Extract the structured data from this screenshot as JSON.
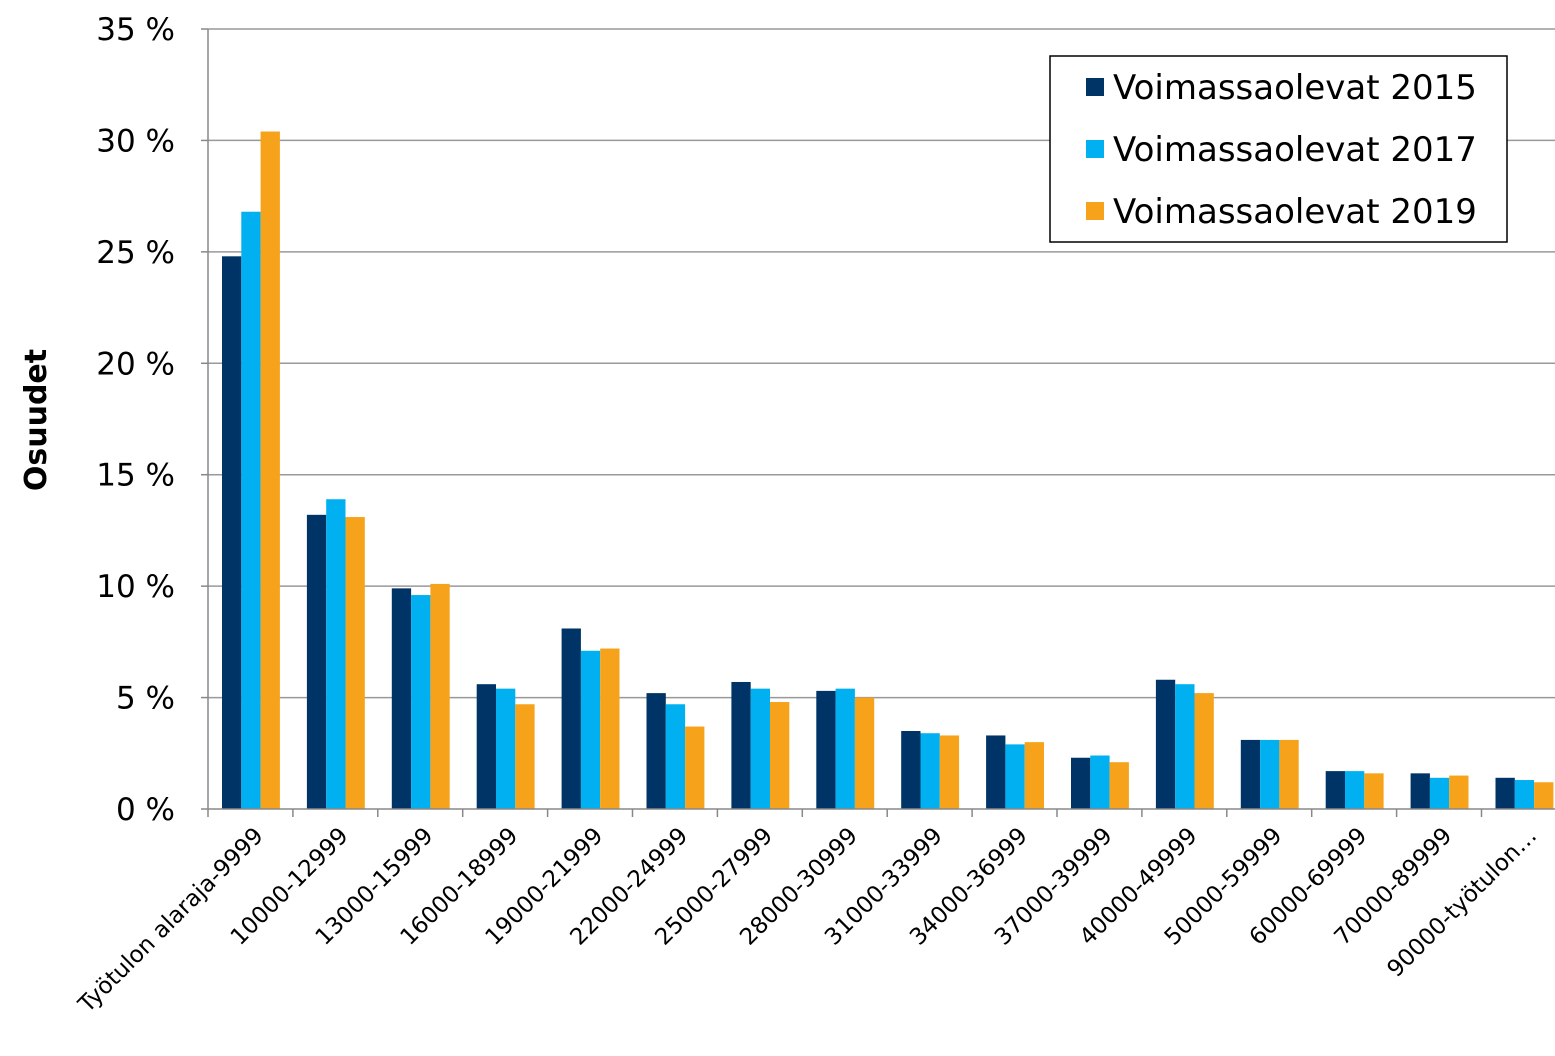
{
  "chart_data": {
    "type": "bar",
    "ylabel": "Osuudet",
    "categories": [
      "Työtulon alaraja-9999",
      "10000-12999",
      "13000-15999",
      "16000-18999",
      "19000-21999",
      "22000-24999",
      "25000-27999",
      "28000-30999",
      "31000-33999",
      "34000-36999",
      "37000-39999",
      "40000-49999",
      "50000-59999",
      "60000-69999",
      "70000-89999",
      "90000-työtulon…"
    ],
    "series": [
      {
        "name": "Voimassaolevat 2015",
        "color": "#003366",
        "values": [
          24.8,
          13.2,
          9.9,
          5.6,
          8.1,
          5.2,
          5.7,
          5.3,
          3.5,
          3.3,
          2.3,
          5.8,
          3.1,
          1.7,
          1.6,
          1.4
        ]
      },
      {
        "name": "Voimassaolevat 2017",
        "color": "#00b0f0",
        "values": [
          26.8,
          13.9,
          9.6,
          5.4,
          7.1,
          4.7,
          5.4,
          5.4,
          3.4,
          2.9,
          2.4,
          5.6,
          3.1,
          1.7,
          1.4,
          1.3
        ]
      },
      {
        "name": "Voimassaolevat 2019",
        "color": "#f7a21b",
        "values": [
          30.4,
          13.1,
          10.1,
          4.7,
          7.2,
          3.7,
          4.8,
          5.0,
          3.3,
          3.0,
          2.1,
          5.2,
          3.1,
          1.6,
          1.5,
          1.2
        ]
      }
    ],
    "ylim": [
      0,
      35
    ],
    "yticks": [
      {
        "value": 0,
        "label": "0 %"
      },
      {
        "value": 5,
        "label": "5 %"
      },
      {
        "value": 10,
        "label": "10 %"
      },
      {
        "value": 15,
        "label": "15 %"
      },
      {
        "value": 20,
        "label": "20 %"
      },
      {
        "value": 25,
        "label": "25 %"
      },
      {
        "value": 30,
        "label": "30 %"
      },
      {
        "value": 35,
        "label": "35 %"
      }
    ],
    "grid": true,
    "legend": "upper right"
  }
}
